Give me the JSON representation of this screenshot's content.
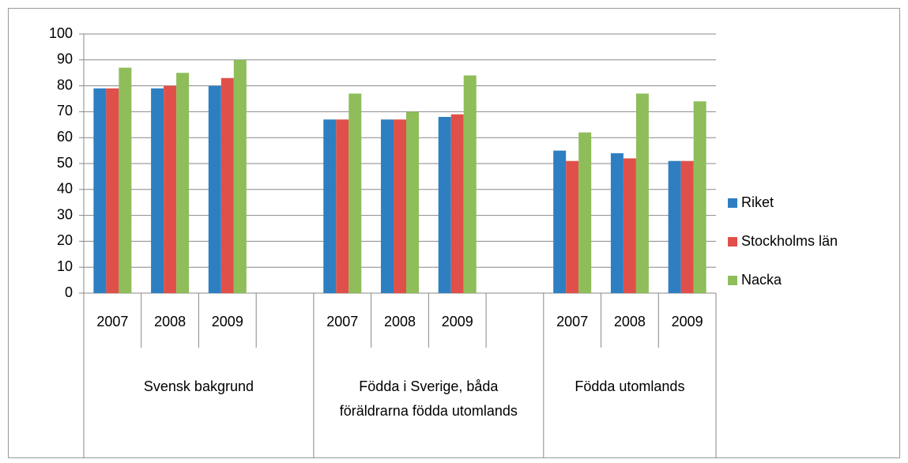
{
  "chart_data": {
    "type": "bar",
    "categories": [
      "2007",
      "2008",
      "2009",
      null,
      "2007",
      "2008",
      "2009",
      null,
      "2007",
      "2008",
      "2009"
    ],
    "groups": [
      "Svensk bakgrund",
      "Födda i Sverige, båda föräldrarna födda utomlands",
      "Födda utomlands"
    ],
    "series": [
      {
        "name": "Riket",
        "color": "#2e7fc1",
        "values": [
          79,
          79,
          80,
          null,
          67,
          67,
          68,
          null,
          55,
          54,
          51
        ]
      },
      {
        "name": "Stockholms län",
        "color": "#e0504a",
        "values": [
          79,
          80,
          83,
          null,
          67,
          67,
          69,
          null,
          51,
          52,
          51
        ]
      },
      {
        "name": "Nacka",
        "color": "#8ebd5a",
        "values": [
          87,
          85,
          90,
          null,
          77,
          70,
          84,
          null,
          62,
          77,
          74
        ]
      }
    ],
    "ylim": [
      0,
      100
    ],
    "yticks": [
      0,
      10,
      20,
      30,
      40,
      50,
      60,
      70,
      80,
      90,
      100
    ],
    "grid": true,
    "legend": "right"
  }
}
